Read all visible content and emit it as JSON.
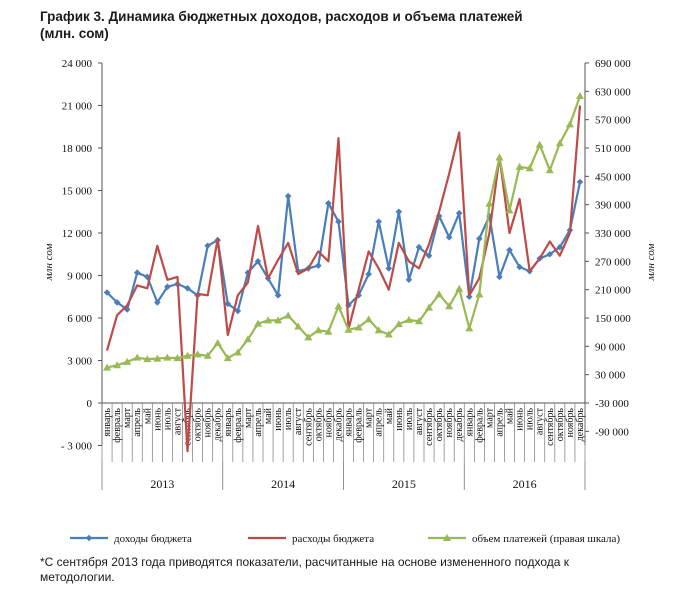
{
  "title": "График 3. Динамика бюджетных доходов, расходов и объема платежей (млн. сом)",
  "footnote": "*С сентября 2013 года приводятся показатели, расчитанные на основе измененного подхода к методологии.",
  "colors": {
    "income": "#4a7ebb",
    "expense": "#be4b48",
    "payments": "#98b954"
  },
  "chart_data": {
    "type": "line",
    "title": "График 3. Динамика бюджетных доходов, расходов и объема платежей (млн. сом)",
    "ylabel": "млн сом",
    "ylabel_right": "млн сом",
    "ylim": [
      -3000,
      24000
    ],
    "ylim_right": [
      -90000,
      690000
    ],
    "yticks": [
      "24 000",
      "21 000",
      "18 000",
      "15 000",
      "12 000",
      "9 000",
      "6 000",
      "3 000",
      "0",
      "- 3 000"
    ],
    "yticks_values": [
      24000,
      21000,
      18000,
      15000,
      12000,
      9000,
      6000,
      3000,
      0,
      -3000
    ],
    "yticks_right": [
      "690 000",
      "630 000",
      "570 000",
      "510 000",
      "450 000",
      "390 000",
      "330 000",
      "270 000",
      "210 000",
      "150 000",
      "90 000",
      "30 000",
      "-30 000",
      "-90 000"
    ],
    "yticks_right_values": [
      690000,
      630000,
      570000,
      510000,
      450000,
      390000,
      330000,
      270000,
      210000,
      150000,
      90000,
      30000,
      -30000,
      -90000
    ],
    "months": [
      "январь",
      "февраль",
      "март",
      "апрель",
      "май",
      "июнь",
      "июль",
      "август",
      "сентябрь",
      "октябрь",
      "ноябрь",
      "декабрь"
    ],
    "years": [
      "2013",
      "2014",
      "2015",
      "2016"
    ],
    "series": [
      {
        "name": "доходы бюджета",
        "axis": "left",
        "values": [
          7800,
          7100,
          6600,
          9200,
          8900,
          7100,
          8200,
          8400,
          8100,
          7600,
          11100,
          11500,
          7000,
          6500,
          9200,
          10000,
          8800,
          7600,
          14600,
          9300,
          9500,
          9700,
          14100,
          12800,
          6900,
          7600,
          9100,
          12800,
          9500,
          13500,
          8700,
          11000,
          10400,
          13200,
          11700,
          13400,
          7500,
          11600,
          13200,
          8900,
          10800,
          9600,
          9300,
          10200,
          10500,
          11000,
          12200,
          15600
        ]
      },
      {
        "name": "расходы бюджета",
        "axis": "left",
        "values": [
          3700,
          6200,
          6900,
          8300,
          8100,
          11100,
          8700,
          8900,
          -3400,
          7700,
          7600,
          11600,
          4800,
          7600,
          8500,
          12500,
          8800,
          10100,
          11300,
          9100,
          9500,
          10700,
          10000,
          18700,
          5200,
          8000,
          10700,
          9500,
          8000,
          11300,
          10000,
          9500,
          11200,
          13500,
          16200,
          19100,
          7600,
          8800,
          12000,
          17400,
          12000,
          14400,
          9300,
          10200,
          11400,
          10400,
          12000,
          21000
        ]
      },
      {
        "name": "объем платежей (правая шкала)",
        "axis": "right",
        "values": [
          45000,
          50000,
          57000,
          66000,
          63000,
          64000,
          66000,
          65000,
          70000,
          73000,
          70000,
          97000,
          65000,
          77000,
          105000,
          138000,
          145000,
          145000,
          155000,
          132000,
          109000,
          124000,
          121000,
          175000,
          125000,
          130000,
          147000,
          124000,
          115000,
          137000,
          146000,
          143000,
          172000,
          200000,
          175000,
          212000,
          128000,
          200000,
          392000,
          490000,
          378000,
          470000,
          467000,
          517000,
          463000,
          520000,
          560000,
          620000
        ]
      }
    ],
    "legend_position": "bottom",
    "grid": false
  }
}
